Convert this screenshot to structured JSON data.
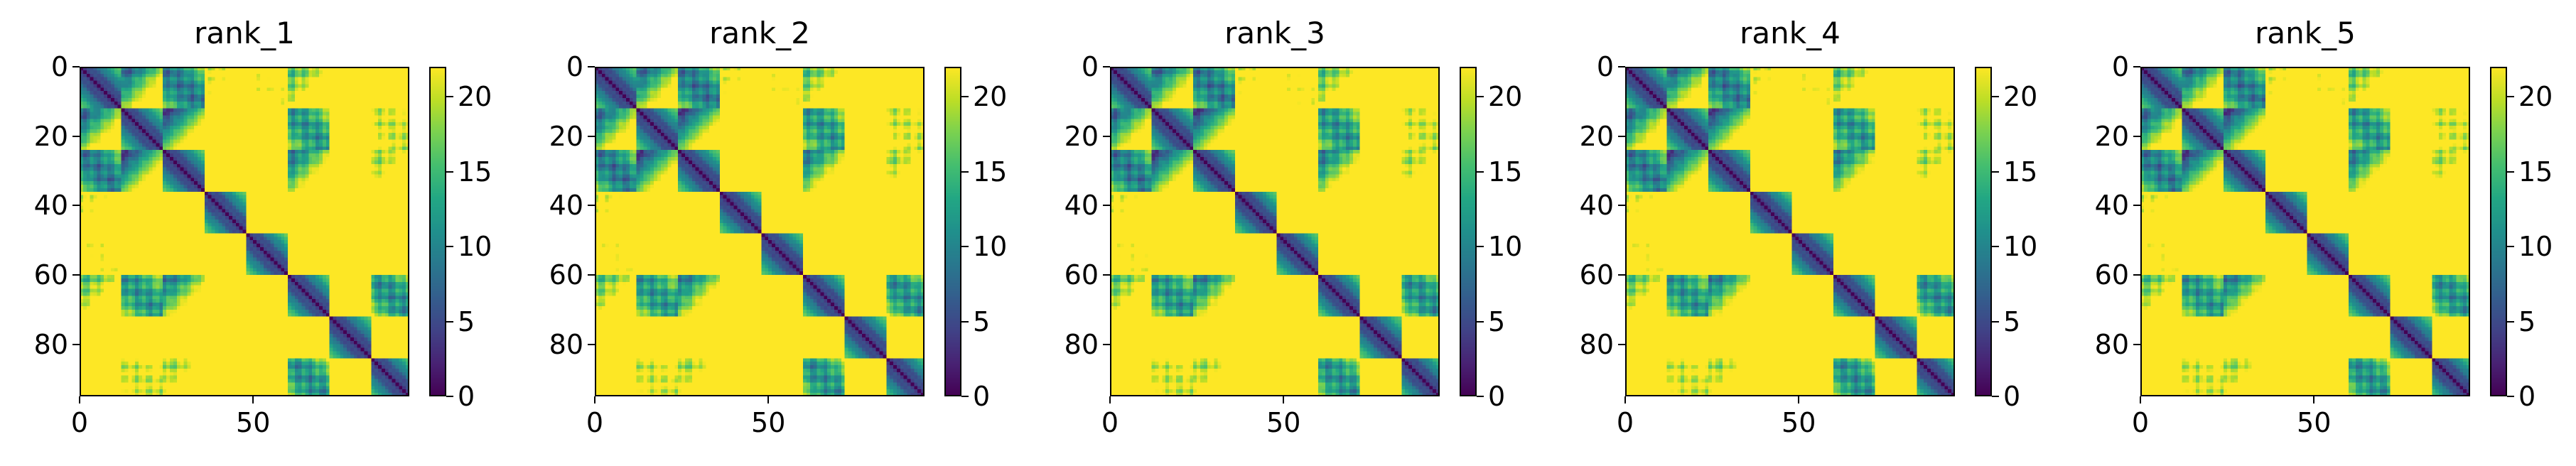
{
  "chart_data": [
    {
      "type": "heatmap",
      "title": "rank_1",
      "xlabel": "",
      "ylabel": "",
      "x_range": [
        0,
        95
      ],
      "y_range": [
        95,
        0
      ],
      "x_ticks": [
        0,
        50
      ],
      "y_ticks": [
        0,
        20,
        40,
        60,
        80
      ],
      "y_inverted": true,
      "colormap": "viridis",
      "colorbar": {
        "range": [
          0,
          22
        ],
        "ticks": [
          0,
          5,
          10,
          15,
          20
        ],
        "placement": "right"
      },
      "matrix_size": 95,
      "description_values": "symmetric pairwise distance map; diagonal = 0, saturated regions >= 22"
    },
    {
      "type": "heatmap",
      "title": "rank_2",
      "xlabel": "",
      "ylabel": "",
      "x_range": [
        0,
        95
      ],
      "y_range": [
        95,
        0
      ],
      "x_ticks": [
        0,
        50
      ],
      "y_ticks": [
        0,
        20,
        40,
        60,
        80
      ],
      "y_inverted": true,
      "colormap": "viridis",
      "colorbar": {
        "range": [
          0,
          22
        ],
        "ticks": [
          0,
          5,
          10,
          15,
          20
        ],
        "placement": "right"
      },
      "matrix_size": 95
    },
    {
      "type": "heatmap",
      "title": "rank_3",
      "xlabel": "",
      "ylabel": "",
      "x_range": [
        0,
        95
      ],
      "y_range": [
        95,
        0
      ],
      "x_ticks": [
        0,
        50
      ],
      "y_ticks": [
        0,
        20,
        40,
        60,
        80
      ],
      "y_inverted": true,
      "colormap": "viridis",
      "colorbar": {
        "range": [
          0,
          22
        ],
        "ticks": [
          0,
          5,
          10,
          15,
          20
        ],
        "placement": "right"
      },
      "matrix_size": 95
    },
    {
      "type": "heatmap",
      "title": "rank_4",
      "xlabel": "",
      "ylabel": "",
      "x_range": [
        0,
        95
      ],
      "y_range": [
        95,
        0
      ],
      "x_ticks": [
        0,
        50
      ],
      "y_ticks": [
        0,
        20,
        40,
        60,
        80
      ],
      "y_inverted": true,
      "colormap": "viridis",
      "colorbar": {
        "range": [
          0,
          22
        ],
        "ticks": [
          0,
          5,
          10,
          15,
          20
        ],
        "placement": "right"
      },
      "matrix_size": 95
    },
    {
      "type": "heatmap",
      "title": "rank_5",
      "xlabel": "",
      "ylabel": "",
      "x_range": [
        0,
        95
      ],
      "y_range": [
        95,
        0
      ],
      "x_ticks": [
        0,
        50
      ],
      "y_ticks": [
        0,
        20,
        40,
        60,
        80
      ],
      "y_inverted": true,
      "colormap": "viridis",
      "colorbar": {
        "range": [
          0,
          22
        ],
        "ticks": [
          0,
          5,
          10,
          15,
          20
        ],
        "placement": "right"
      },
      "matrix_size": 95
    }
  ]
}
